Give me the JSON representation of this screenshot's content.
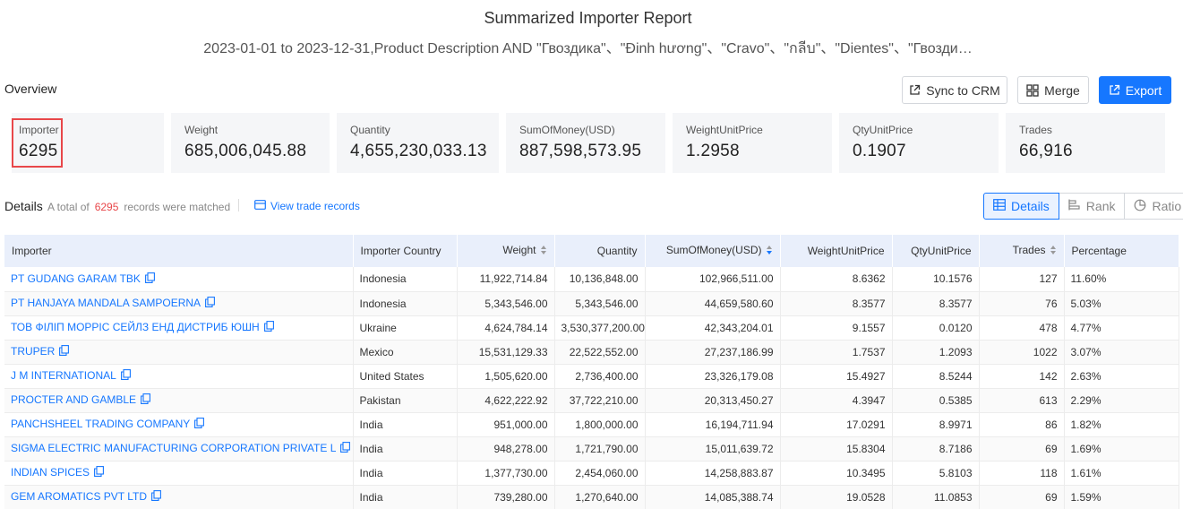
{
  "report": {
    "title": "Summarized Importer Report",
    "subtitle": "2023-01-01 to 2023-12-31,Product Description AND \"Гвоздика\"、\"Đinh hương\"、\"Cravo\"、\"กลีบ\"、\"Dientes\"、\"Гвозди…"
  },
  "overview": {
    "label": "Overview",
    "buttons": {
      "sync": "Sync to CRM",
      "merge": "Merge",
      "export": "Export"
    },
    "stats": [
      {
        "label": "Importer",
        "value": "6295"
      },
      {
        "label": "Weight",
        "value": "685,006,045.88"
      },
      {
        "label": "Quantity",
        "value": "4,655,230,033.13"
      },
      {
        "label": "SumOfMoney(USD)",
        "value": "887,598,573.95"
      },
      {
        "label": "WeightUnitPrice",
        "value": "1.2958"
      },
      {
        "label": "QtyUnitPrice",
        "value": "0.1907"
      },
      {
        "label": "Trades",
        "value": "66,916"
      }
    ]
  },
  "details": {
    "label": "Details",
    "total_prefix": "A total of",
    "total_count": "6295",
    "total_suffix": "records were matched",
    "view_link": "View trade records",
    "tabs": {
      "details": "Details",
      "rank": "Rank",
      "ratio": "Ratio"
    }
  },
  "table": {
    "headers": {
      "importer": "Importer",
      "country": "Importer Country",
      "weight": "Weight",
      "quantity": "Quantity",
      "money": "SumOfMoney(USD)",
      "wup": "WeightUnitPrice",
      "qup": "QtyUnitPrice",
      "trades": "Trades",
      "pct": "Percentage"
    },
    "rows": [
      {
        "importer": "PT GUDANG GARAM TBK",
        "country": "Indonesia",
        "weight": "11,922,714.84",
        "quantity": "10,136,848.00",
        "money": "102,966,511.00",
        "wup": "8.6362",
        "qup": "10.1576",
        "trades": "127",
        "pct": "11.60%"
      },
      {
        "importer": "PT HANJAYA MANDALA SAMPOERNA",
        "country": "Indonesia",
        "weight": "5,343,546.00",
        "quantity": "5,343,546.00",
        "money": "44,659,580.60",
        "wup": "8.3577",
        "qup": "8.3577",
        "trades": "76",
        "pct": "5.03%"
      },
      {
        "importer": "ТОВ ФІЛІП МОРРІС СЕЙЛЗ ЕНД ДИСТРИБ ЮШН",
        "country": "Ukraine",
        "weight": "4,624,784.14",
        "quantity": "3,530,377,200.00",
        "money": "42,343,204.01",
        "wup": "9.1557",
        "qup": "0.0120",
        "trades": "478",
        "pct": "4.77%"
      },
      {
        "importer": "TRUPER",
        "country": "Mexico",
        "weight": "15,531,129.33",
        "quantity": "22,522,552.00",
        "money": "27,237,186.99",
        "wup": "1.7537",
        "qup": "1.2093",
        "trades": "1022",
        "pct": "3.07%"
      },
      {
        "importer": "J M INTERNATIONAL",
        "country": "United States",
        "weight": "1,505,620.00",
        "quantity": "2,736,400.00",
        "money": "23,326,179.08",
        "wup": "15.4927",
        "qup": "8.5244",
        "trades": "142",
        "pct": "2.63%"
      },
      {
        "importer": "PROCTER AND GAMBLE",
        "country": "Pakistan",
        "weight": "4,622,222.92",
        "quantity": "37,722,210.00",
        "money": "20,313,450.27",
        "wup": "4.3947",
        "qup": "0.5385",
        "trades": "613",
        "pct": "2.29%"
      },
      {
        "importer": "PANCHSHEEL TRADING COMPANY",
        "country": "India",
        "weight": "951,000.00",
        "quantity": "1,800,000.00",
        "money": "16,194,711.94",
        "wup": "17.0291",
        "qup": "8.9971",
        "trades": "86",
        "pct": "1.82%"
      },
      {
        "importer": "SIGMA ELECTRIC MANUFACTURING CORPORATION PRIVATE L",
        "country": "India",
        "weight": "948,278.00",
        "quantity": "1,721,790.00",
        "money": "15,011,639.72",
        "wup": "15.8304",
        "qup": "8.7186",
        "trades": "69",
        "pct": "1.69%"
      },
      {
        "importer": "INDIAN SPICES",
        "country": "India",
        "weight": "1,377,730.00",
        "quantity": "2,454,060.00",
        "money": "14,258,883.87",
        "wup": "10.3495",
        "qup": "5.8103",
        "trades": "118",
        "pct": "1.61%"
      },
      {
        "importer": "GEM AROMATICS PVT LTD",
        "country": "India",
        "weight": "739,280.00",
        "quantity": "1,270,640.00",
        "money": "14,085,388.74",
        "wup": "19.0528",
        "qup": "11.0853",
        "trades": "69",
        "pct": "1.59%"
      }
    ]
  },
  "colors": {
    "accent": "#1677ff",
    "highlight": "#e8474a",
    "header_bg": "#e9effb",
    "stat_bg": "#f5f6f8"
  },
  "icons": [
    "external-link-icon",
    "merge-icon",
    "export-icon",
    "card-icon",
    "table-icon",
    "bar-icon",
    "pie-icon",
    "copy-icon",
    "sort-icon"
  ]
}
